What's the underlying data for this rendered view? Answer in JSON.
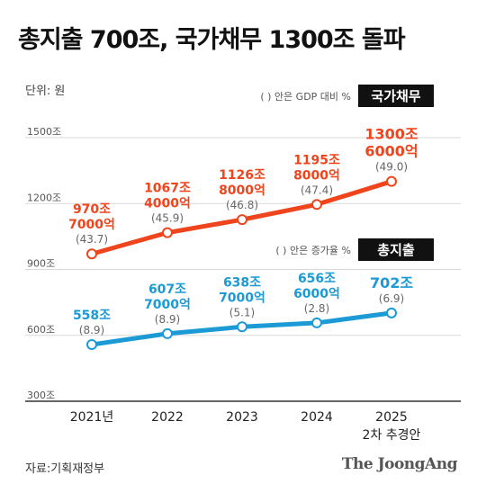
{
  "title": "총지출 700조, 국가채무 1300조 돌파",
  "unit_label": "단위: 원",
  "source": "자료:기획재정부",
  "brand": "The JoongAng",
  "colors": {
    "debt": "#f0441c",
    "spending": "#1b9ad6",
    "grid": "#d9d9d9",
    "axis": "#333333",
    "tag_bg": "#111111"
  },
  "chart_data": {
    "type": "line",
    "categories": [
      "2021년",
      "2022",
      "2023",
      "2024",
      "2025"
    ],
    "category_sublabels": [
      "",
      "",
      "",
      "",
      "2차 추경안"
    ],
    "ylim": [
      300,
      1500
    ],
    "yticks": [
      300,
      600,
      900,
      1200,
      1500
    ],
    "ytick_labels": [
      "300조",
      "600조",
      "900조",
      "1200조",
      "1500조"
    ],
    "series": [
      {
        "name": "국가채무",
        "values": [
          970.7,
          1067.4,
          1126.8,
          1195.8,
          1300.6
        ],
        "value_labels": [
          [
            "970조",
            "7000억"
          ],
          [
            "1067조",
            "4000억"
          ],
          [
            "1126조",
            "8000억"
          ],
          [
            "1195조",
            "8000억"
          ],
          [
            "1300조",
            "6000억"
          ]
        ],
        "ratio_labels": [
          "(43.7)",
          "(45.9)",
          "(46.8)",
          "(47.4)",
          "(49.0)"
        ],
        "note": "( ) 안은 GDP 대비 %"
      },
      {
        "name": "총지출",
        "values": [
          558,
          607.7,
          638.7,
          656.6,
          702
        ],
        "value_labels": [
          [
            "558조"
          ],
          [
            "607조",
            "7000억"
          ],
          [
            "638조",
            "7000억"
          ],
          [
            "656조",
            "6000억"
          ],
          [
            "702조"
          ]
        ],
        "ratio_labels": [
          "(8.9)",
          "(8.9)",
          "(5.1)",
          "(2.8)",
          "(6.9)"
        ],
        "note": "( ) 안은 증가율 %"
      }
    ]
  }
}
